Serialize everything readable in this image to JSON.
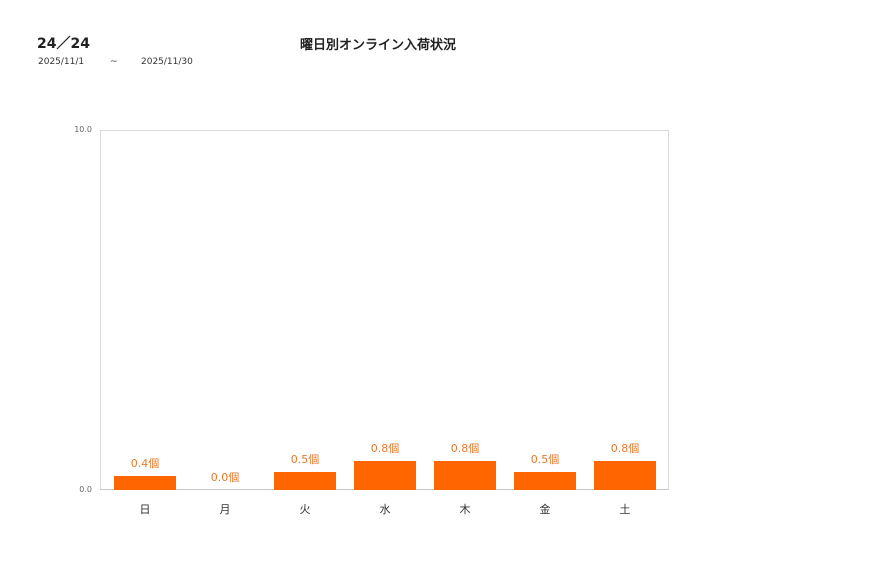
{
  "header": {
    "page_indicator": "24／24",
    "date_from": "2025/11/1",
    "date_separator": "~",
    "date_to": "2025/11/30"
  },
  "chart_data": {
    "type": "bar",
    "title": "曜日別オンライン入荷状況",
    "xlabel": "",
    "ylabel": "",
    "ylim": [
      0,
      10
    ],
    "y_ticks": [
      "0.0",
      "10.0"
    ],
    "grid": false,
    "legend": null,
    "categories": [
      "日",
      "月",
      "火",
      "水",
      "木",
      "金",
      "土"
    ],
    "values": [
      0.4,
      0.0,
      0.5,
      0.8,
      0.8,
      0.5,
      0.8
    ],
    "data_labels": [
      "0.4個",
      "0.0個",
      "0.5個",
      "0.8個",
      "0.8個",
      "0.5個",
      "0.8個"
    ],
    "bar_color": "#ff6600",
    "label_color": "#e8792b"
  }
}
